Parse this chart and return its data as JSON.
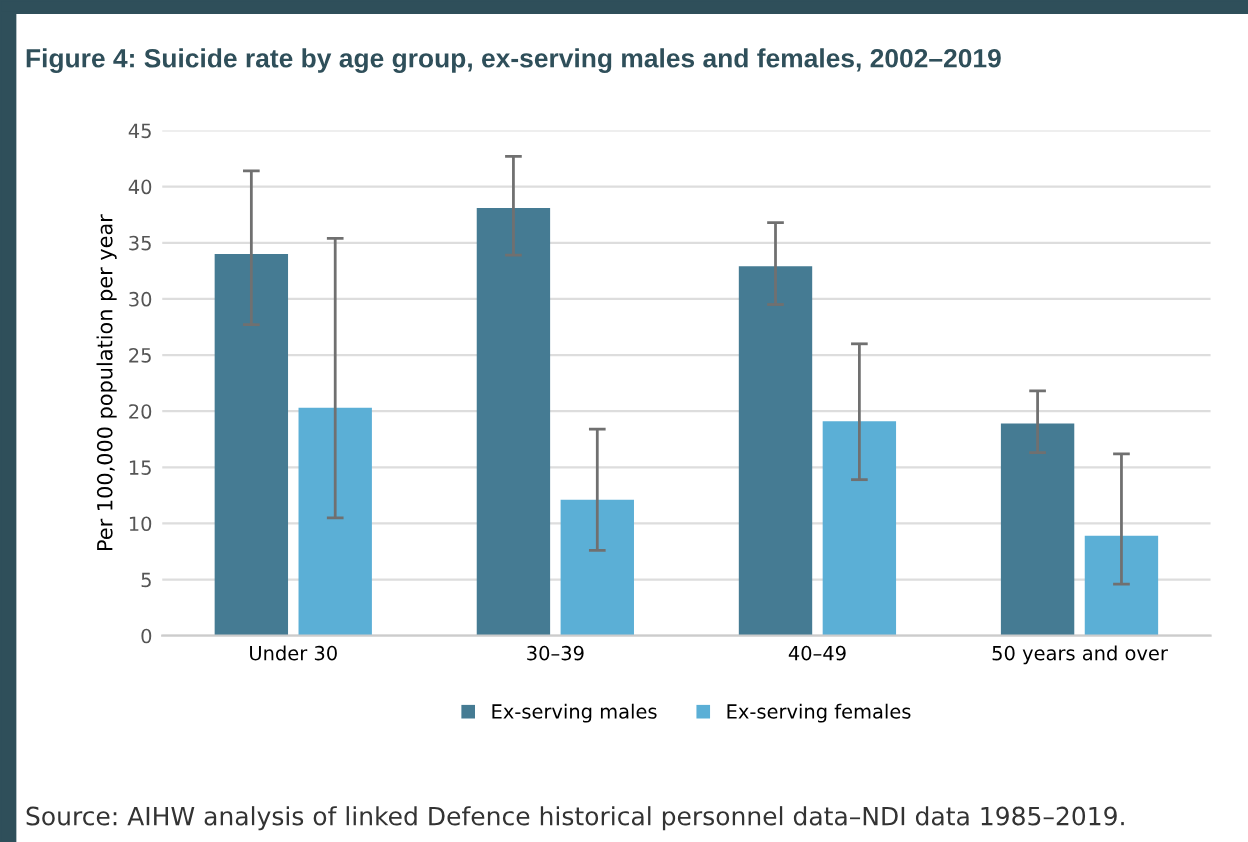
{
  "chart_data": {
    "type": "bar",
    "title": "Figure 4: Suicide rate by age group, ex-serving males and females, 2002–2019",
    "ylabel": "Per 100,000 population per year",
    "categories": [
      "Under 30",
      "30–39",
      "40–49",
      "50 years and over"
    ],
    "series": [
      {
        "name": "Ex-serving males",
        "color": "#457b93",
        "values": [
          34.0,
          38.1,
          32.9,
          18.9
        ],
        "errors": [
          [
            27.7,
            41.4
          ],
          [
            33.9,
            42.7
          ],
          [
            29.5,
            36.8
          ],
          [
            16.3,
            21.8
          ]
        ]
      },
      {
        "name": "Ex-serving females",
        "color": "#5bafd6",
        "values": [
          20.3,
          12.1,
          19.1,
          8.9
        ],
        "errors": [
          [
            10.5,
            35.4
          ],
          [
            7.6,
            18.4
          ],
          [
            13.9,
            26.0
          ],
          [
            4.6,
            16.2
          ]
        ]
      }
    ],
    "ylim": [
      0,
      45
    ],
    "yticks": [
      0,
      5,
      10,
      15,
      20,
      25,
      30,
      35,
      40,
      45
    ],
    "grid": "y",
    "legend": "bottom",
    "annotations": [
      "Source: AIHW analysis of linked Defence historical personnel data–NDI data 1985–2019."
    ]
  }
}
